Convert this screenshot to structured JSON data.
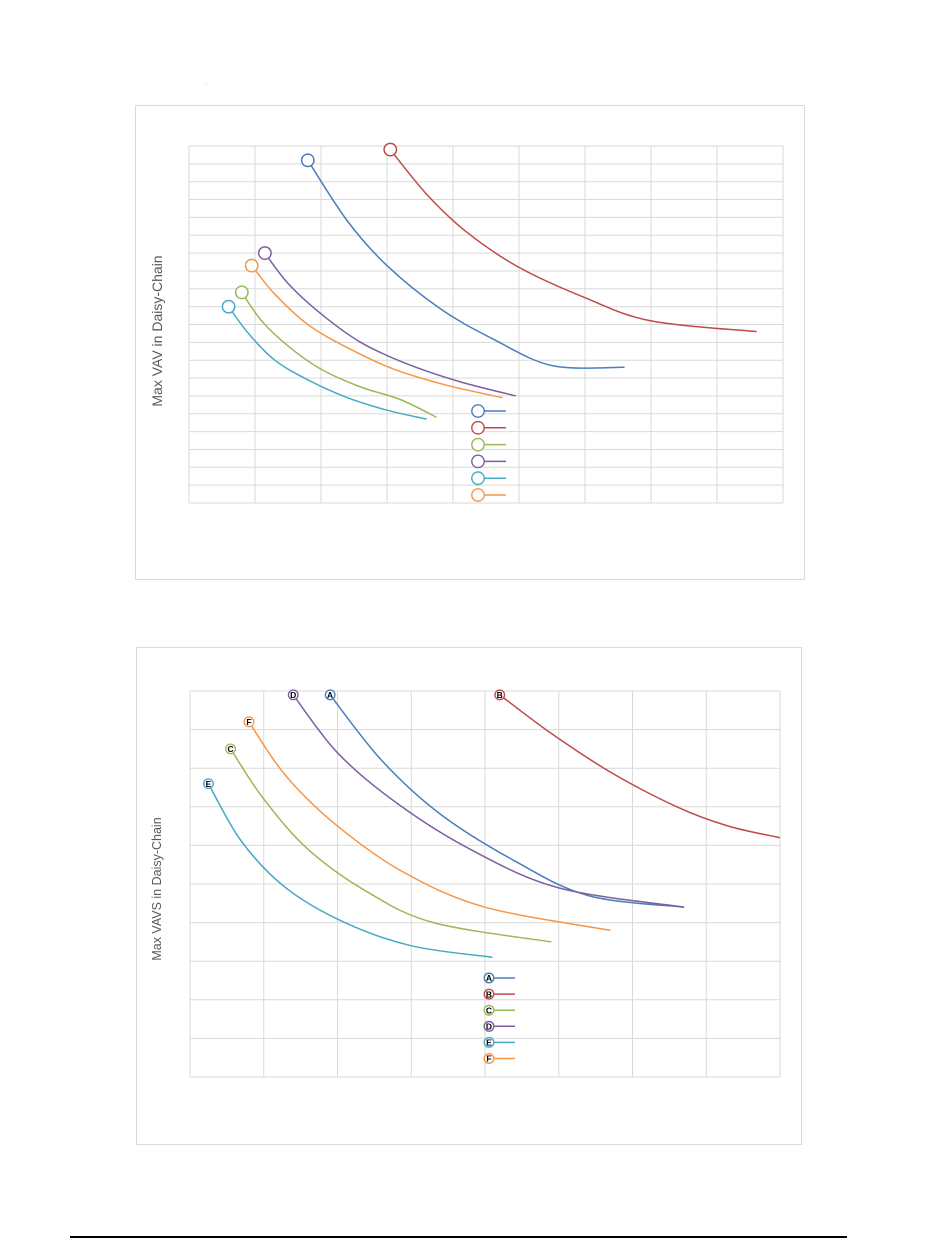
{
  "charts": [
    {
      "ylabel": "Max VAV in Daisy-Chain",
      "marker": "circle",
      "colors": {
        "A": "#4a7ebb",
        "B": "#be4b48",
        "C": "#98b954",
        "D": "#7d60a0",
        "E": "#46aac5",
        "F": "#f79646"
      }
    },
    {
      "ylabel": "Max VAVS in Daisy-Chain",
      "marker": "letter",
      "colors": {
        "A": "#4a7ebb",
        "B": "#be4b48",
        "C": "#98b954",
        "D": "#7d60a0",
        "E": "#46aac5",
        "F": "#f79646"
      }
    }
  ],
  "chart_data": [
    {
      "type": "line",
      "title": "",
      "xlabel": "",
      "ylabel": "Max VAV in Daisy-Chain",
      "xlim": [
        0,
        9
      ],
      "ylim": [
        0,
        20
      ],
      "grid": true,
      "legend": "bottom-center",
      "series": [
        {
          "name": "",
          "x": [
            1.8,
            2.4,
            3.0,
            3.8,
            4.6,
            5.5,
            6.6
          ],
          "y": [
            19.2,
            15.8,
            13.3,
            10.9,
            9.2,
            7.7,
            7.6
          ]
        },
        {
          "name": "",
          "x": [
            3.05,
            3.6,
            4.2,
            5.0,
            6.0,
            7.0,
            8.6
          ],
          "y": [
            19.8,
            17.3,
            15.2,
            13.2,
            11.5,
            10.2,
            9.6
          ]
        },
        {
          "name": "",
          "x": [
            0.8,
            1.1,
            1.5,
            2.0,
            2.6,
            3.2,
            3.75
          ],
          "y": [
            11.8,
            10.2,
            8.8,
            7.5,
            6.5,
            5.8,
            4.8
          ]
        },
        {
          "name": "",
          "x": [
            1.15,
            1.5,
            2.0,
            2.6,
            3.3,
            4.1,
            4.95
          ],
          "y": [
            14.0,
            12.3,
            10.6,
            9.0,
            7.8,
            6.8,
            6.0
          ]
        },
        {
          "name": "",
          "x": [
            0.6,
            0.9,
            1.3,
            1.8,
            2.4,
            3.0,
            3.6
          ],
          "y": [
            11.0,
            9.5,
            8.0,
            6.9,
            5.9,
            5.2,
            4.7
          ]
        },
        {
          "name": "",
          "x": [
            0.95,
            1.3,
            1.8,
            2.4,
            3.1,
            3.9,
            4.75
          ],
          "y": [
            13.3,
            11.7,
            10.0,
            8.7,
            7.5,
            6.6,
            5.9
          ]
        }
      ]
    },
    {
      "type": "line",
      "title": "",
      "xlabel": "",
      "ylabel": "Max VAVS in Daisy-Chain",
      "xlim": [
        0,
        8
      ],
      "ylim": [
        0,
        10
      ],
      "grid": true,
      "legend": "bottom-center",
      "series": [
        {
          "name": "A",
          "x": [
            1.9,
            2.6,
            3.4,
            4.4,
            5.4,
            6.7
          ],
          "y": [
            9.9,
            8.2,
            6.8,
            5.6,
            4.7,
            4.4
          ]
        },
        {
          "name": "B",
          "x": [
            4.2,
            4.9,
            5.7,
            6.6,
            7.3,
            8.0
          ],
          "y": [
            9.9,
            8.9,
            7.9,
            7.0,
            6.5,
            6.2
          ]
        },
        {
          "name": "C",
          "x": [
            0.55,
            1.0,
            1.6,
            2.4,
            3.3,
            4.9
          ],
          "y": [
            8.5,
            7.2,
            5.9,
            4.8,
            4.0,
            3.5
          ]
        },
        {
          "name": "D",
          "x": [
            1.4,
            2.0,
            2.8,
            3.8,
            5.0,
            6.7
          ],
          "y": [
            9.9,
            8.4,
            7.1,
            5.9,
            4.9,
            4.4
          ]
        },
        {
          "name": "E",
          "x": [
            0.25,
            0.7,
            1.3,
            2.1,
            3.0,
            4.1
          ],
          "y": [
            7.6,
            6.1,
            4.9,
            4.0,
            3.4,
            3.1
          ]
        },
        {
          "name": "F",
          "x": [
            0.8,
            1.3,
            2.0,
            2.9,
            4.0,
            5.7
          ],
          "y": [
            9.2,
            7.8,
            6.5,
            5.3,
            4.4,
            3.8
          ]
        }
      ]
    }
  ]
}
